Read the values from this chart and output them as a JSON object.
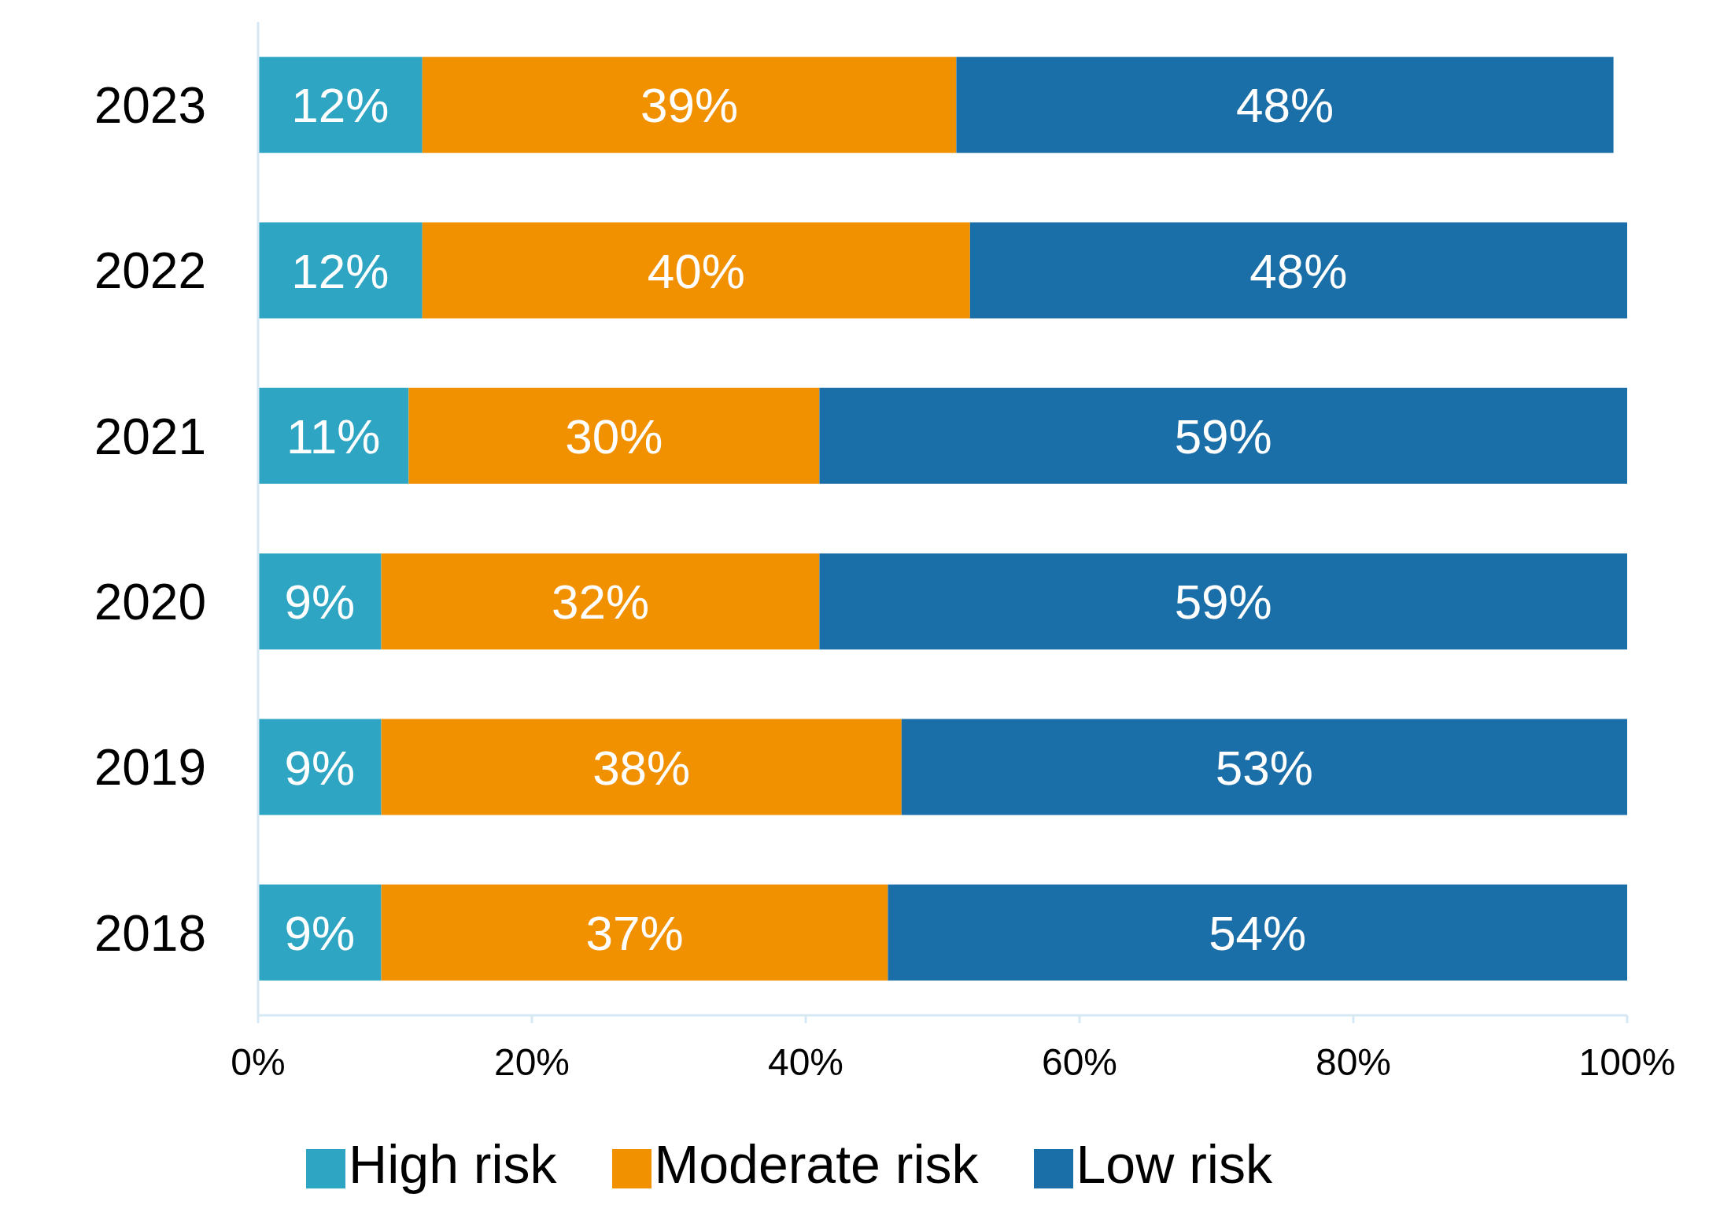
{
  "chart_data": {
    "type": "bar",
    "orientation": "horizontal",
    "stacked": true,
    "categories": [
      "2023",
      "2022",
      "2021",
      "2020",
      "2019",
      "2018"
    ],
    "series": [
      {
        "name": "High risk",
        "color": "#2ea6c3",
        "values": [
          12,
          12,
          11,
          9,
          9,
          9
        ],
        "value_labels": [
          "12%",
          "12%",
          "11%",
          "9%",
          "9%",
          "9%"
        ]
      },
      {
        "name": "Moderate risk",
        "color": "#f29100",
        "values": [
          39,
          40,
          30,
          32,
          38,
          37
        ],
        "value_labels": [
          "39%",
          "40%",
          "30%",
          "32%",
          "38%",
          "37%"
        ]
      },
      {
        "name": "Low risk",
        "color": "#1b6fa8",
        "values": [
          48,
          48,
          59,
          59,
          53,
          54
        ],
        "value_labels": [
          "48%",
          "48%",
          "59%",
          "59%",
          "53%",
          "54%"
        ]
      }
    ],
    "xlim": [
      0,
      100
    ],
    "xticks": [
      {
        "value": 0,
        "label": "0%"
      },
      {
        "value": 20,
        "label": "20%"
      },
      {
        "value": 40,
        "label": "40%"
      },
      {
        "value": 60,
        "label": "60%"
      },
      {
        "value": 80,
        "label": "80%"
      },
      {
        "value": 100,
        "label": "100%"
      }
    ],
    "grid": false,
    "legend": "bottom"
  }
}
